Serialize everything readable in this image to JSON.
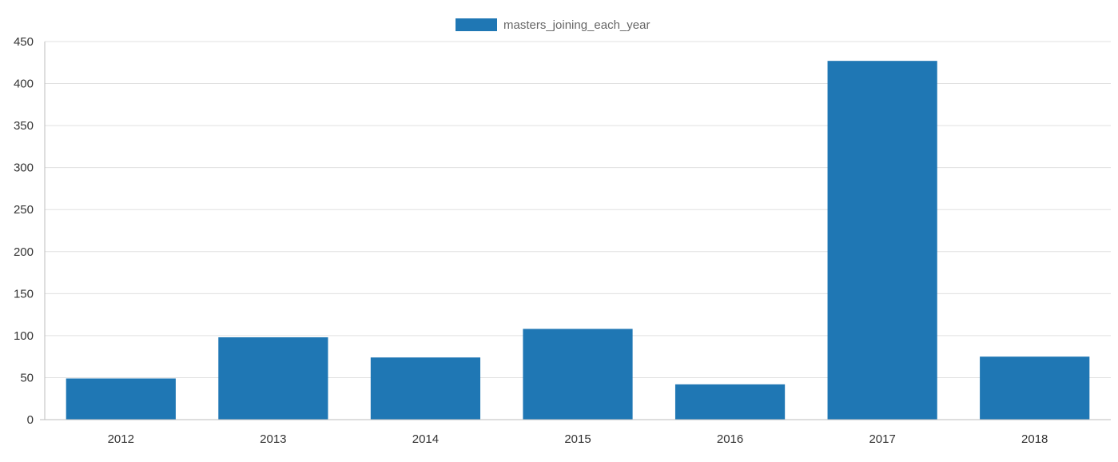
{
  "chart_data": {
    "type": "bar",
    "categories": [
      "2012",
      "2013",
      "2014",
      "2015",
      "2016",
      "2017",
      "2018"
    ],
    "series": [
      {
        "name": "masters_joining_each_year",
        "values": [
          49,
          98,
          74,
          108,
          42,
          427,
          75
        ],
        "color": "#1f77b4"
      }
    ],
    "ylim": [
      0,
      450
    ],
    "yticks": [
      0,
      50,
      100,
      150,
      200,
      250,
      300,
      350,
      400,
      450
    ],
    "grid": "horizontal",
    "legend_position": "top-center"
  }
}
